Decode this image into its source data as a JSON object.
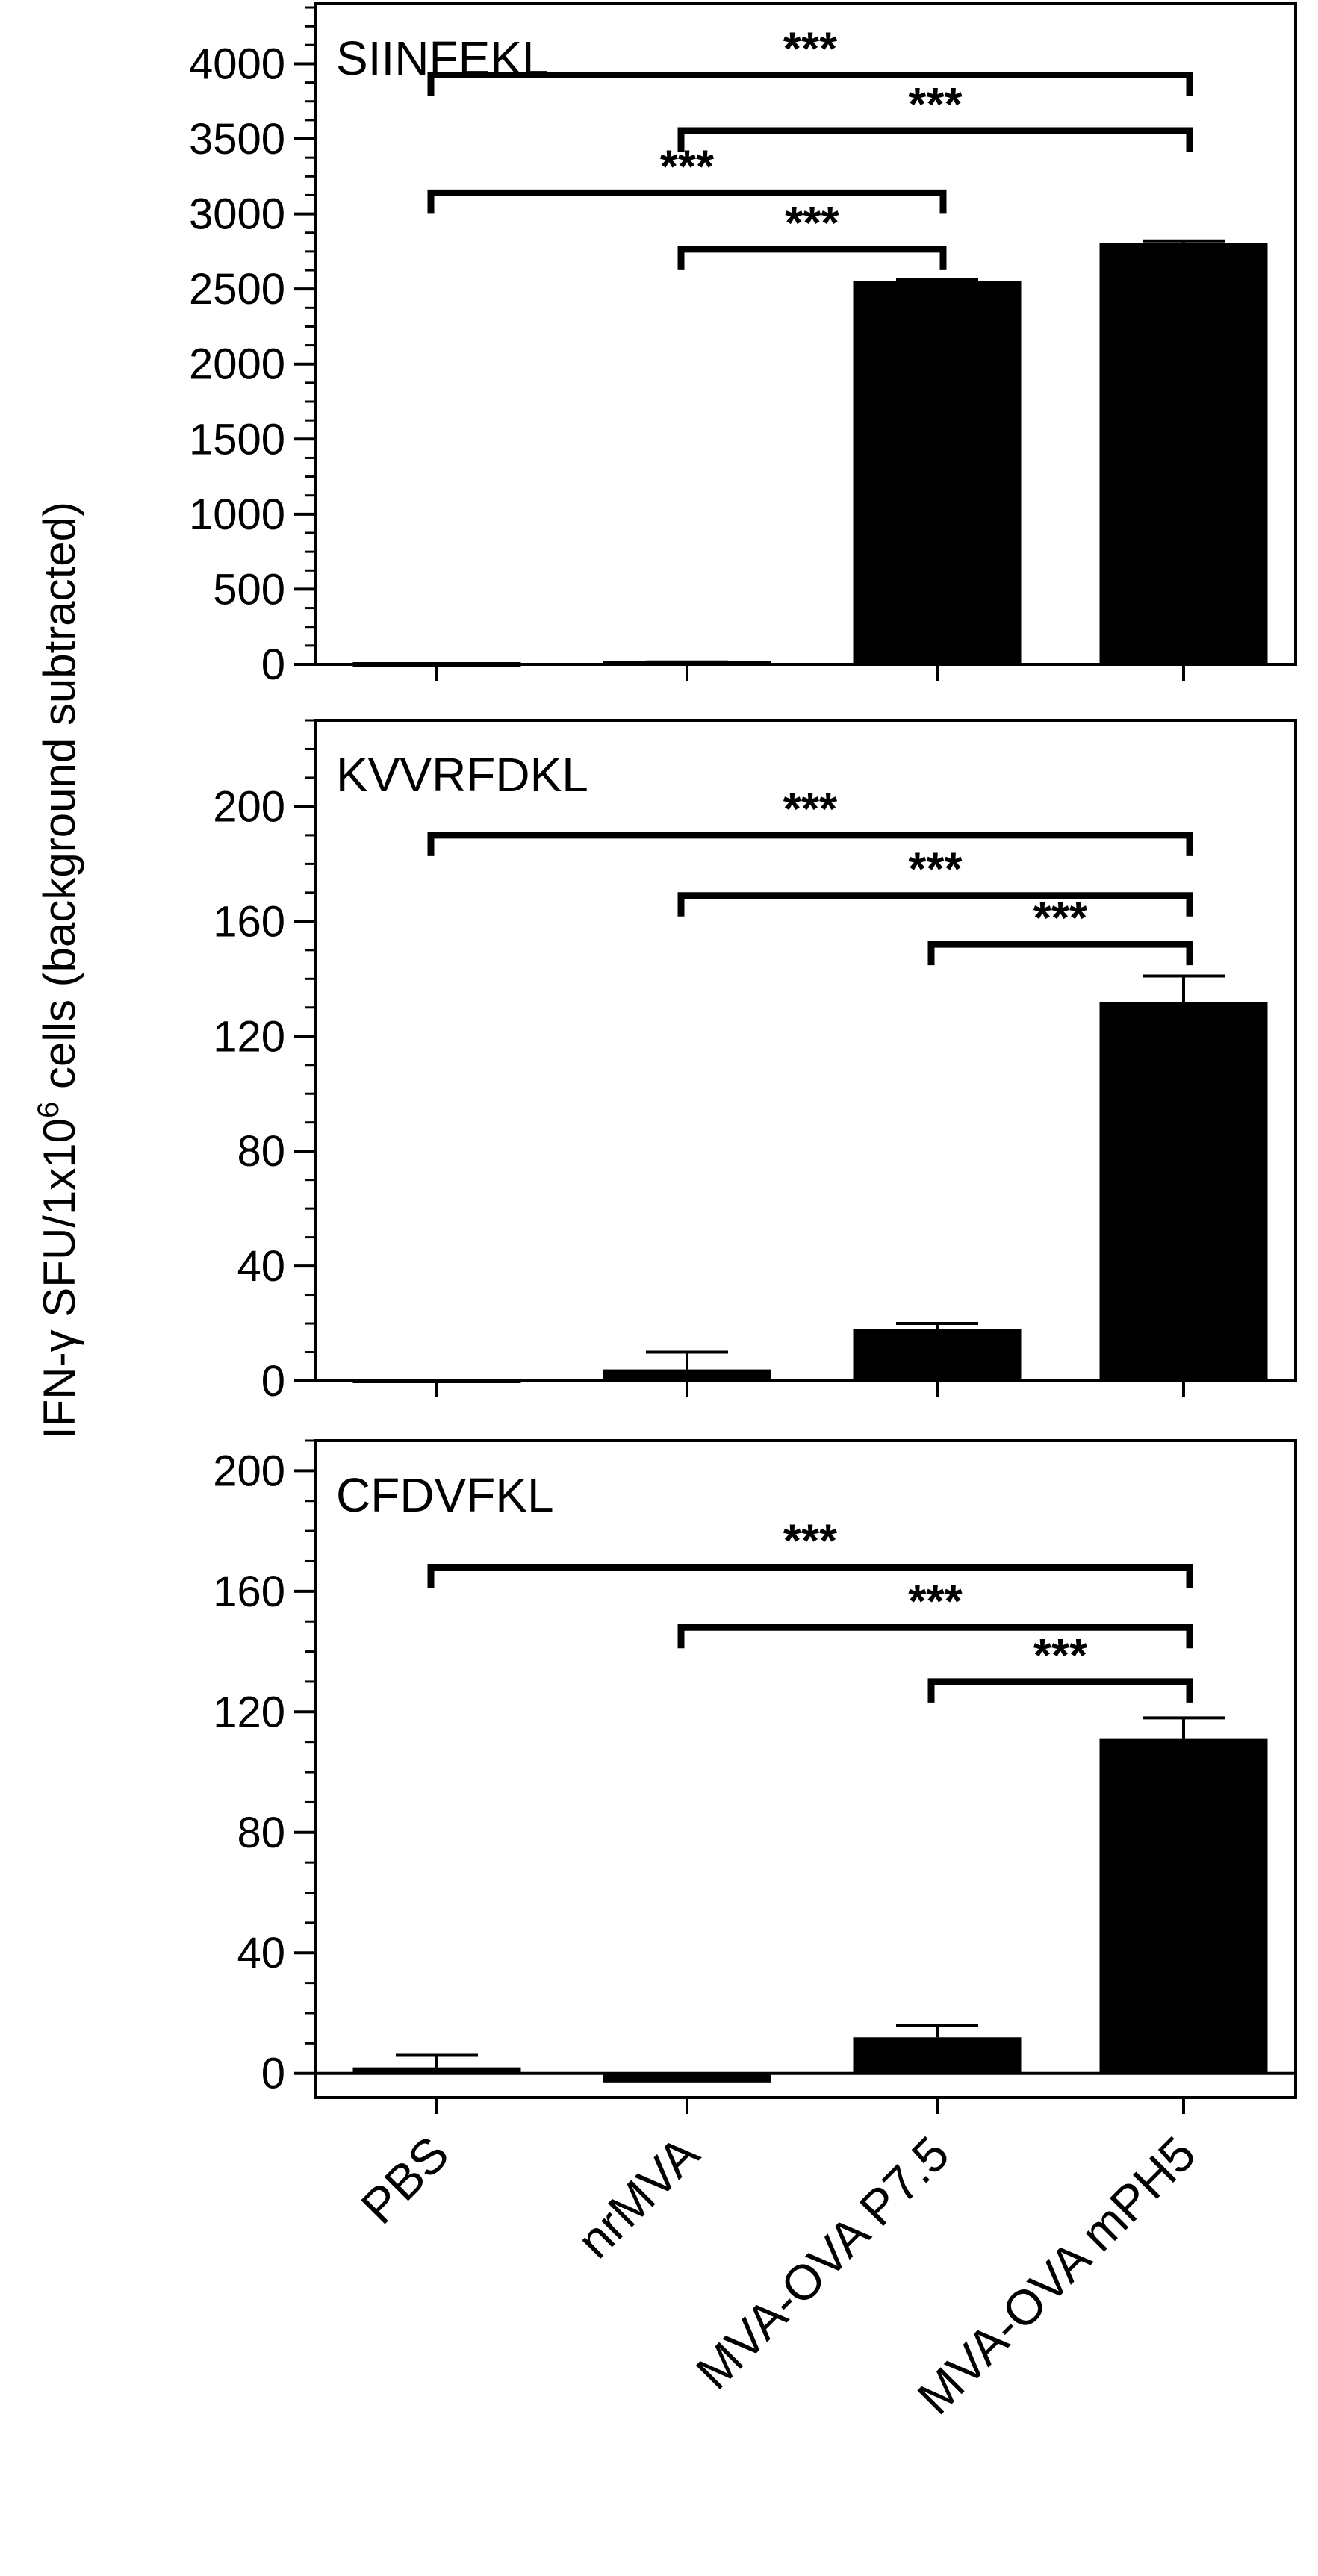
{
  "chart_data": {
    "type": "bar",
    "ylabel_main": "IFN-γ SFU/1x10",
    "ylabel_sup": "6",
    "ylabel_tail": " cells (background subtracted)",
    "categories": [
      "PBS",
      "nrMVA",
      "MVA-OVA P7.5",
      "MVA-OVA mPH5"
    ],
    "bar_color": "#000000",
    "panels": [
      {
        "title": "SIINFEKL",
        "ylim": [
          0,
          4400
        ],
        "yticks": [
          0,
          500,
          1000,
          1500,
          2000,
          2500,
          3000,
          3500,
          4000
        ],
        "ytick_labels": [
          "0",
          "500",
          "1000",
          "1500",
          "2000",
          "2500",
          "3000",
          "3500",
          "4000"
        ],
        "values": [
          0,
          8,
          2555,
          2805
        ],
        "errors": [
          0,
          8,
          10,
          15
        ],
        "significance": [
          {
            "from": 0,
            "to": 3,
            "label": "***",
            "level": 3925
          },
          {
            "from": 1,
            "to": 3,
            "label": "***",
            "level": 3555
          },
          {
            "from": 0,
            "to": 2,
            "label": "***",
            "level": 3140
          },
          {
            "from": 1,
            "to": 2,
            "label": "***",
            "level": 2765
          }
        ]
      },
      {
        "title": "KVVRFDKL",
        "ylim": [
          0,
          230
        ],
        "yticks": [
          0,
          40,
          80,
          120,
          160,
          200
        ],
        "ytick_labels": [
          "0",
          "40",
          "80",
          "120",
          "160",
          "200"
        ],
        "values": [
          0,
          4,
          18,
          132
        ],
        "errors": [
          0,
          6,
          2,
          9
        ],
        "significance": [
          {
            "from": 0,
            "to": 3,
            "label": "***",
            "level": 190
          },
          {
            "from": 1,
            "to": 3,
            "label": "***",
            "level": 169
          },
          {
            "from": 2,
            "to": 3,
            "label": "***",
            "level": 152
          }
        ]
      },
      {
        "title": "CFDVFKL",
        "ylim": [
          -8,
          210
        ],
        "yticks": [
          0,
          40,
          80,
          120,
          160,
          200
        ],
        "ytick_labels": [
          "0",
          "40",
          "80",
          "120",
          "160",
          "200"
        ],
        "values": [
          2,
          -3,
          12,
          111
        ],
        "errors": [
          4,
          0,
          4,
          7
        ],
        "significance": [
          {
            "from": 0,
            "to": 3,
            "label": "***",
            "level": 168
          },
          {
            "from": 1,
            "to": 3,
            "label": "***",
            "level": 148
          },
          {
            "from": 2,
            "to": 3,
            "label": "***",
            "level": 130
          }
        ]
      }
    ]
  }
}
